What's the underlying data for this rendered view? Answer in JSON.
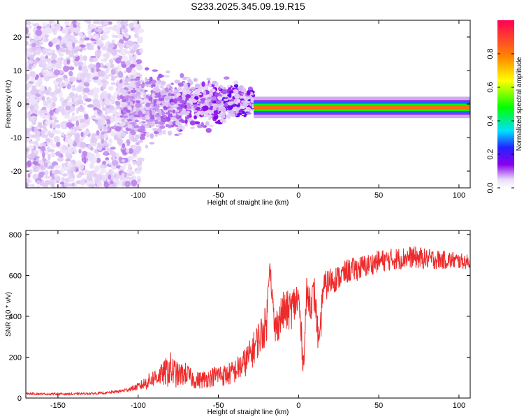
{
  "colors": {
    "snr_line": "#ee2a2a",
    "axis": "#000000",
    "background": "#ffffff"
  },
  "chart_data": [
    {
      "type": "heatmap",
      "title": "S233.2025.345.09.19.R15",
      "xlabel": "Height of straight line (km)",
      "ylabel": "Frequency (Hz)",
      "xlim": [
        -170,
        107
      ],
      "ylim": [
        -25,
        25
      ],
      "xticks": [
        -150,
        -100,
        -50,
        0,
        50,
        100
      ],
      "yticks": [
        -20,
        -10,
        0,
        10,
        20
      ],
      "colorbar": {
        "label": "Normalized spectral amplitude",
        "range": [
          0,
          1
        ],
        "ticks": [
          "0.0",
          "0.2",
          "0.4",
          "0.6",
          "0.8"
        ],
        "colormap": [
          "#ffffff",
          "#ccaaee",
          "#8800ee",
          "#2222ff",
          "#00e0ff",
          "#00ff00",
          "#ffff00",
          "#ff8800",
          "#ff0055"
        ]
      },
      "features": [
        {
          "region": "diffuse noise",
          "x_range": [
            -170,
            -110
          ],
          "freq_range": [
            -25,
            25
          ],
          "amplitude": 0.1
        },
        {
          "region": "converging spread",
          "x_range": [
            -110,
            -28
          ],
          "freq_range": [
            -10,
            8
          ],
          "amplitude": 0.2
        },
        {
          "region": "narrow tone",
          "x_range": [
            -28,
            107
          ],
          "freq_center": -1,
          "freq_width": 2,
          "amplitude": 0.9
        }
      ]
    },
    {
      "type": "line",
      "xlabel": "Height of straight line (km)",
      "ylabel": "SNR (10 * v/v)",
      "xlim": [
        -170,
        107
      ],
      "ylim": [
        0,
        820
      ],
      "xticks": [
        -150,
        -100,
        -50,
        0,
        50,
        100
      ],
      "yticks": [
        0,
        200,
        400,
        600,
        800
      ],
      "series": [
        {
          "name": "SNR",
          "x": [
            -170,
            -160,
            -150,
            -140,
            -130,
            -120,
            -110,
            -105,
            -100,
            -95,
            -90,
            -85,
            -80,
            -75,
            -70,
            -65,
            -60,
            -55,
            -50,
            -45,
            -40,
            -35,
            -30,
            -25,
            -20,
            -18,
            -15,
            -10,
            -5,
            0,
            3,
            5,
            8,
            10,
            13,
            15,
            20,
            25,
            30,
            35,
            40,
            45,
            50,
            55,
            60,
            65,
            70,
            75,
            80,
            85,
            90,
            95,
            100,
            107
          ],
          "y": [
            22,
            20,
            20,
            20,
            22,
            25,
            35,
            45,
            55,
            75,
            100,
            115,
            140,
            110,
            120,
            85,
            90,
            100,
            115,
            110,
            130,
            160,
            210,
            290,
            360,
            680,
            330,
            420,
            430,
            490,
            160,
            500,
            475,
            510,
            220,
            530,
            575,
            590,
            620,
            630,
            640,
            655,
            670,
            675,
            680,
            685,
            690,
            685,
            680,
            680,
            675,
            675,
            670,
            665
          ],
          "noise_amplitude": [
            5,
            5,
            5,
            5,
            5,
            6,
            8,
            10,
            20,
            35,
            45,
            55,
            90,
            60,
            55,
            40,
            45,
            45,
            55,
            55,
            60,
            70,
            80,
            90,
            100,
            40,
            90,
            100,
            100,
            100,
            60,
            90,
            90,
            90,
            80,
            80,
            70,
            60,
            60,
            60,
            60,
            55,
            55,
            55,
            55,
            55,
            55,
            55,
            50,
            50,
            45,
            45,
            40,
            35
          ]
        }
      ]
    }
  ]
}
